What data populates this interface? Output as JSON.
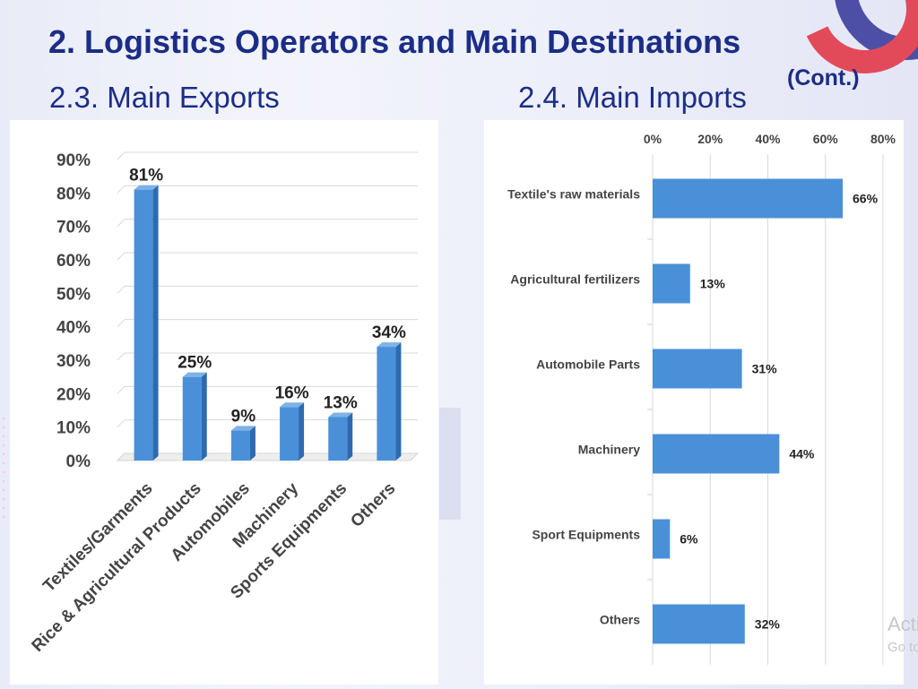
{
  "slide": {
    "title": "2. Logistics Operators and Main Destinations",
    "title_cont": "(Cont.)"
  },
  "sections": {
    "exports_heading": "2.3. Main Exports",
    "imports_heading": "2.4. Main Imports"
  },
  "watermark": {
    "line1": "Activate Windows",
    "line2": "Go to Settings to activate Windows."
  },
  "colors": {
    "title": "#1b2d86",
    "bar": "#4a90d9",
    "bar_side": "#2e6aaf",
    "bar_top": "#7fb2e6"
  },
  "chart_data": [
    {
      "type": "bar",
      "orientation": "vertical",
      "style": "3d-column",
      "categories": [
        "Textiles/Garments",
        "Rice & Agricultural Products",
        "Automobiles",
        "Machinery",
        "Sports Equipments",
        "Others"
      ],
      "values": [
        81,
        25,
        9,
        16,
        13,
        34
      ],
      "data_labels": [
        "81%",
        "25%",
        "9%",
        "16%",
        "13%",
        "34%"
      ],
      "ylim": [
        0,
        90
      ],
      "yticks": [
        0,
        10,
        20,
        30,
        40,
        50,
        60,
        70,
        80,
        90
      ],
      "ytick_labels": [
        "0%",
        "10%",
        "20%",
        "30%",
        "40%",
        "50%",
        "60%",
        "70%",
        "80%",
        "90%"
      ],
      "grid": true,
      "title": "",
      "xlabel": "",
      "ylabel": ""
    },
    {
      "type": "bar",
      "orientation": "horizontal",
      "categories": [
        "Textile's raw materials",
        "Agricultural fertilizers",
        "Automobile Parts",
        "Machinery",
        "Sport Equipments",
        "Others"
      ],
      "values": [
        66,
        13,
        31,
        44,
        6,
        32
      ],
      "data_labels": [
        "66%",
        "13%",
        "31%",
        "44%",
        "6%",
        "32%"
      ],
      "xlim": [
        0,
        80
      ],
      "xticks": [
        0,
        20,
        40,
        60,
        80
      ],
      "xtick_labels": [
        "0%",
        "20%",
        "40%",
        "60%",
        "80%"
      ],
      "xaxis_position": "top",
      "grid": true,
      "title": "",
      "xlabel": "",
      "ylabel": ""
    }
  ]
}
